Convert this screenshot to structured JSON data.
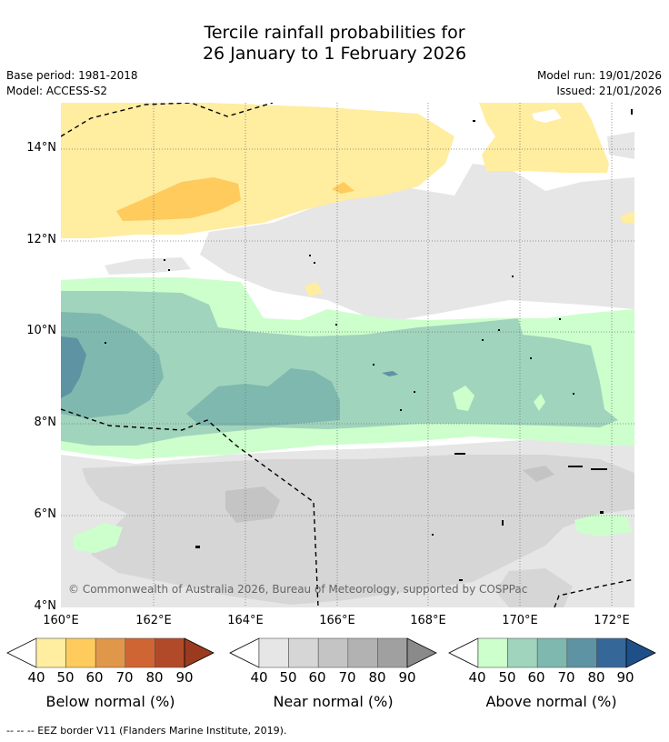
{
  "title": {
    "line1": "Tercile rainfall probabilities for",
    "line2": "26 January to 1 February 2026"
  },
  "meta": {
    "base_period": "Base period: 1981-2018",
    "model": "Model: ACCESS-S2",
    "model_run": "Model run: 19/01/2026",
    "issued": "Issued: 21/01/2026"
  },
  "map": {
    "lat_labels": [
      "14°N",
      "12°N",
      "10°N",
      "8°N",
      "6°N",
      "4°N"
    ],
    "lon_labels": [
      "160°E",
      "162°E",
      "164°E",
      "166°E",
      "168°E",
      "170°E",
      "172°E"
    ],
    "copyright": "© Commonwealth of Australia 2026, Bureau of Meteorology, supported by COSPPac"
  },
  "legend": {
    "below": {
      "label": "Below normal (%)",
      "ticks": [
        "40",
        "50",
        "60",
        "70",
        "80",
        "90"
      ],
      "colors": [
        "#ffeda0",
        "#fecb5c",
        "#e0974a",
        "#cf6533",
        "#b04a28",
        "#9a3a1f"
      ]
    },
    "near": {
      "label": "Near normal (%)",
      "ticks": [
        "40",
        "50",
        "60",
        "70",
        "80",
        "90"
      ],
      "colors": [
        "#e6e6e6",
        "#d6d6d6",
        "#c4c4c4",
        "#b2b2b2",
        "#a0a0a0",
        "#8a8a8a"
      ]
    },
    "above": {
      "label": "Above normal (%)",
      "ticks": [
        "40",
        "50",
        "60",
        "70",
        "80",
        "90"
      ],
      "colors": [
        "#ccffcc",
        "#a0d4bc",
        "#7fb8ae",
        "#5d93a3",
        "#356799",
        "#1e4f88"
      ]
    }
  },
  "footer": "--  --  -- EEZ border V11 (Flanders Marine Institute, 2019)."
}
